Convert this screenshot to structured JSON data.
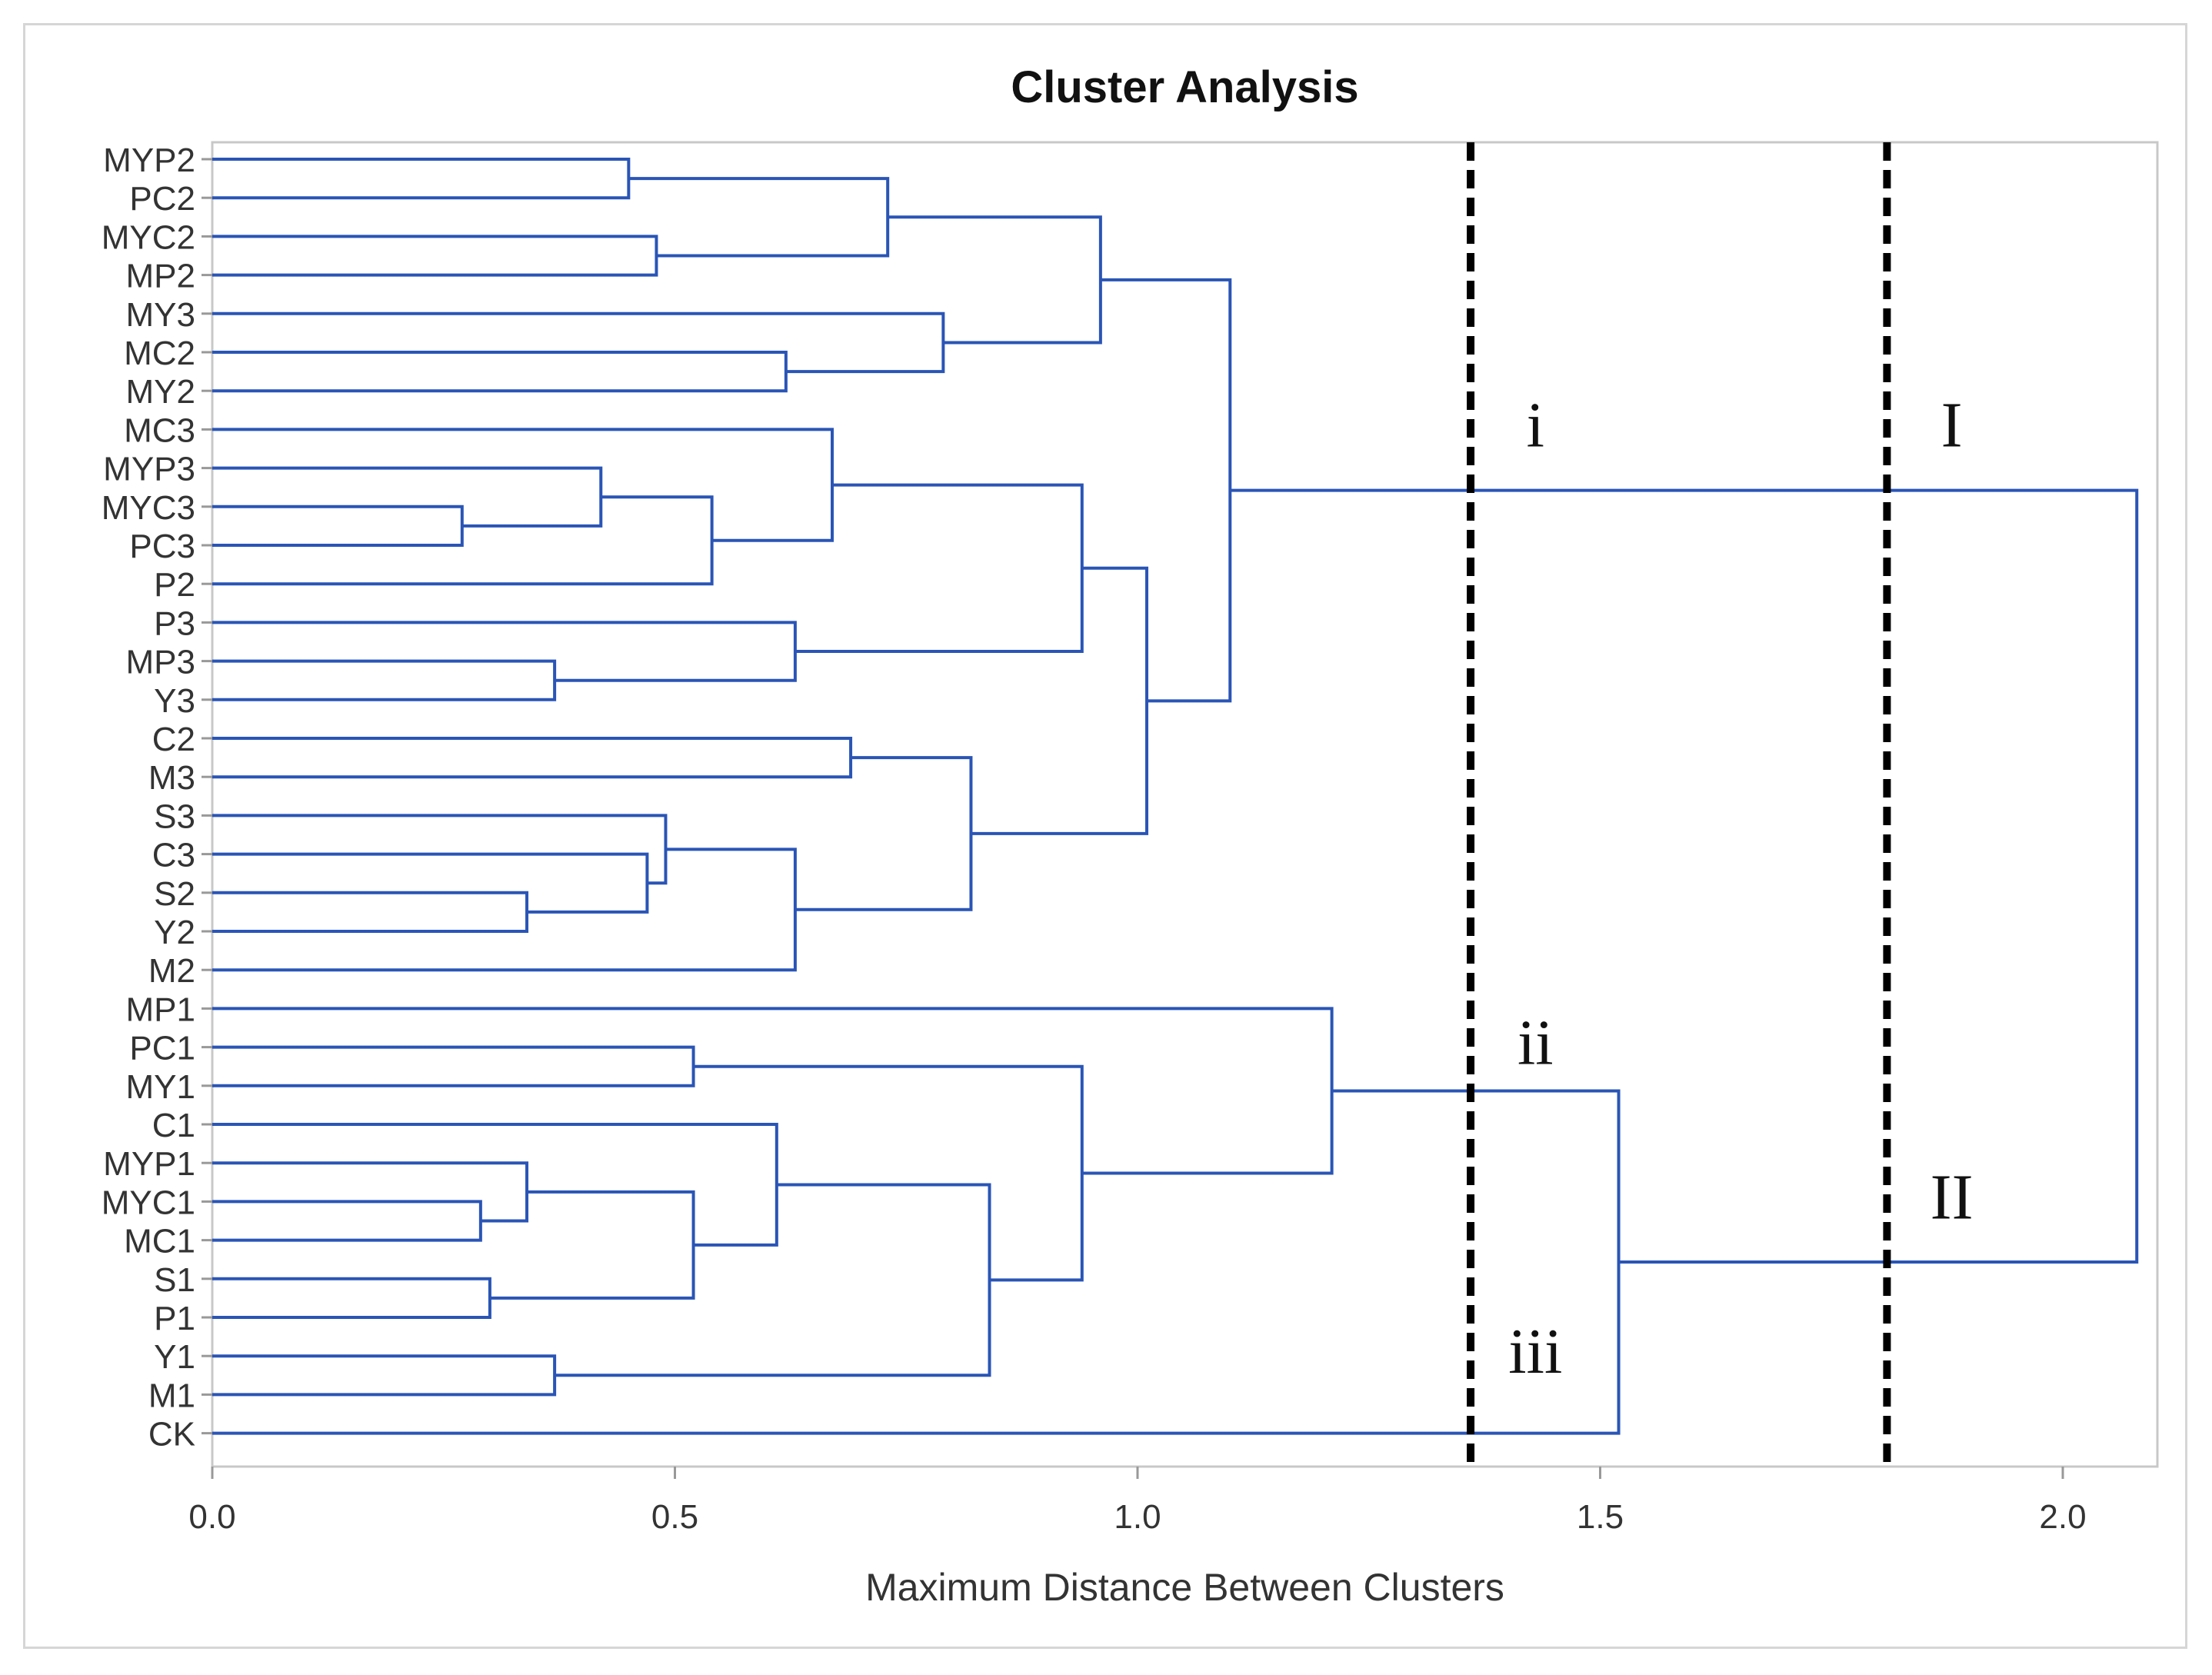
{
  "chart_data": {
    "type": "dendrogram",
    "title": "Cluster Analysis",
    "xlabel": "Maximum Distance Between Clusters",
    "ylabel": "",
    "xlim": [
      0.0,
      2.1
    ],
    "xticks": [
      0.0,
      0.5,
      1.0,
      1.5,
      2.0
    ],
    "xtick_labels": [
      "0.0",
      "0.5",
      "1.0",
      "1.5",
      "2.0"
    ],
    "leaves": [
      "MYP2",
      "PC2",
      "MYC2",
      "MP2",
      "MY3",
      "MC2",
      "MY2",
      "MC3",
      "MYP3",
      "MYC3",
      "PC3",
      "P2",
      "P3",
      "MP3",
      "Y3",
      "C2",
      "M3",
      "S3",
      "C3",
      "S2",
      "Y2",
      "M2",
      "MP1",
      "PC1",
      "MY1",
      "C1",
      "MYP1",
      "MYC1",
      "MC1",
      "S1",
      "P1",
      "Y1",
      "M1",
      "CK"
    ],
    "merges": [
      {
        "left": "MYP2",
        "right": "PC2",
        "height": 0.45
      },
      {
        "left": "MYC2",
        "right": "MP2",
        "height": 0.48
      },
      {
        "left": "c1",
        "right": "c2",
        "height": 0.73
      },
      {
        "left": "MC2",
        "right": "MY2",
        "height": 0.62
      },
      {
        "left": "MY3",
        "right": "c4",
        "height": 0.79
      },
      {
        "left": "c3",
        "right": "c5",
        "height": 0.96
      },
      {
        "left": "MYC3",
        "right": "PC3",
        "height": 0.27
      },
      {
        "left": "MYP3",
        "right": "c7",
        "height": 0.42
      },
      {
        "left": "c8",
        "right": "P2",
        "height": 0.54
      },
      {
        "left": "MC3",
        "right": "c9",
        "height": 0.67
      },
      {
        "left": "MP3",
        "right": "Y3",
        "height": 0.37
      },
      {
        "left": "P3",
        "right": "c11",
        "height": 0.63
      },
      {
        "left": "c10",
        "right": "c12",
        "height": 0.94
      },
      {
        "left": "C2",
        "right": "M3",
        "height": 0.69
      },
      {
        "left": "S2",
        "right": "Y2",
        "height": 0.34
      },
      {
        "left": "C3",
        "right": "c15",
        "height": 0.47
      },
      {
        "left": "S3",
        "right": "c16",
        "height": 0.49
      },
      {
        "left": "c17",
        "right": "M2",
        "height": 0.63
      },
      {
        "left": "c14",
        "right": "c18",
        "height": 0.82
      },
      {
        "left": "c13",
        "right": "c19",
        "height": 1.01
      },
      {
        "left": "c6",
        "right": "c20",
        "height": 1.1
      },
      {
        "left": "PC1",
        "right": "MY1",
        "height": 0.52
      },
      {
        "left": "MYC1",
        "right": "MC1",
        "height": 0.29
      },
      {
        "left": "MYP1",
        "right": "c23",
        "height": 0.34
      },
      {
        "left": "S1",
        "right": "P1",
        "height": 0.3
      },
      {
        "left": "c24",
        "right": "c25",
        "height": 0.52
      },
      {
        "left": "C1",
        "right": "c26",
        "height": 0.61
      },
      {
        "left": "Y1",
        "right": "M1",
        "height": 0.37
      },
      {
        "left": "c27",
        "right": "c28",
        "height": 0.84
      },
      {
        "left": "c22",
        "right": "c29",
        "height": 0.94
      },
      {
        "left": "MP1",
        "right": "c30",
        "height": 1.21
      },
      {
        "left": "c31",
        "right": "CK",
        "height": 1.52
      },
      {
        "left": "c21",
        "right": "c32",
        "height": 2.08
      }
    ],
    "cut_lines": [
      1.36,
      1.81
    ],
    "annotations": [
      {
        "text": "i",
        "x": 1.43,
        "at_leaf": "MC3"
      },
      {
        "text": "I",
        "x": 1.88,
        "at_leaf": "MC3"
      },
      {
        "text": "ii",
        "x": 1.43,
        "at_leaf": "PC1"
      },
      {
        "text": "iii",
        "x": 1.43,
        "at_leaf": "Y1"
      },
      {
        "text": "II",
        "x": 1.88,
        "at_leaf": "MYC1"
      }
    ],
    "colors": {
      "branch": "#2a55b6",
      "cut": "#000000",
      "axis": "#999999",
      "text": "#333333",
      "frame": "#c8c8c8"
    }
  }
}
